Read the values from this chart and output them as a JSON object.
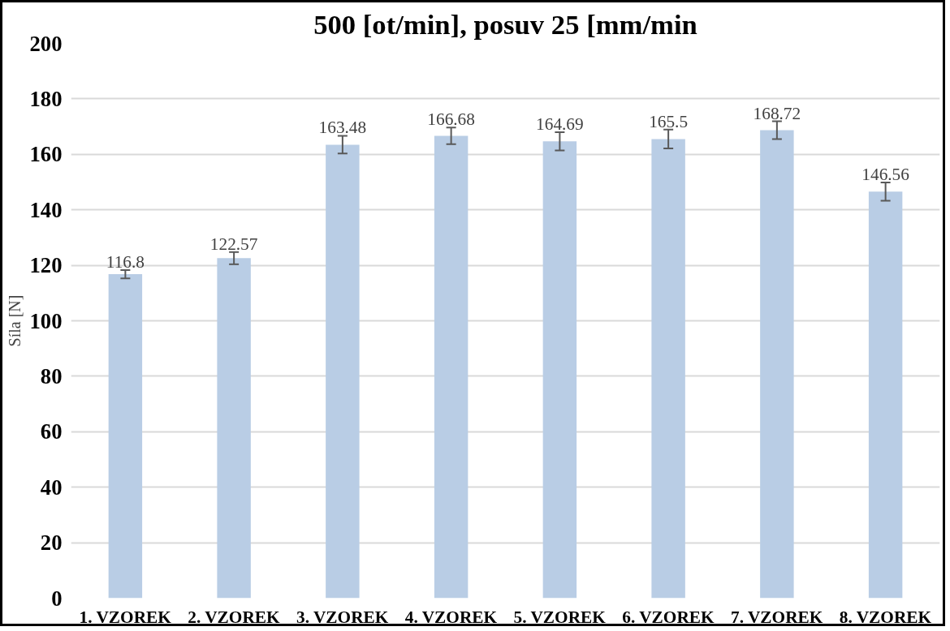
{
  "chart_data": {
    "type": "bar",
    "title": "500 [ot/min], posuv 25 [mm/min",
    "ylabel": "Síla [N]",
    "categories": [
      "1. VZOREK",
      "2. VZOREK",
      "3. VZOREK",
      "4. VZOREK",
      "5. VZOREK",
      "6. VZOREK",
      "7. VZOREK",
      "8. VZOREK"
    ],
    "values": [
      116.8,
      122.57,
      163.48,
      166.68,
      164.69,
      165.5,
      168.72,
      146.56
    ],
    "errors": [
      1.5,
      2.2,
      3.2,
      3.0,
      3.3,
      3.4,
      3.2,
      3.3
    ],
    "color": "#b9cde5",
    "data_labels": true,
    "ylim": [
      0,
      200
    ],
    "yticks": [
      0,
      20,
      40,
      60,
      80,
      100,
      120,
      140,
      160,
      180,
      200
    ],
    "grid": "y"
  }
}
